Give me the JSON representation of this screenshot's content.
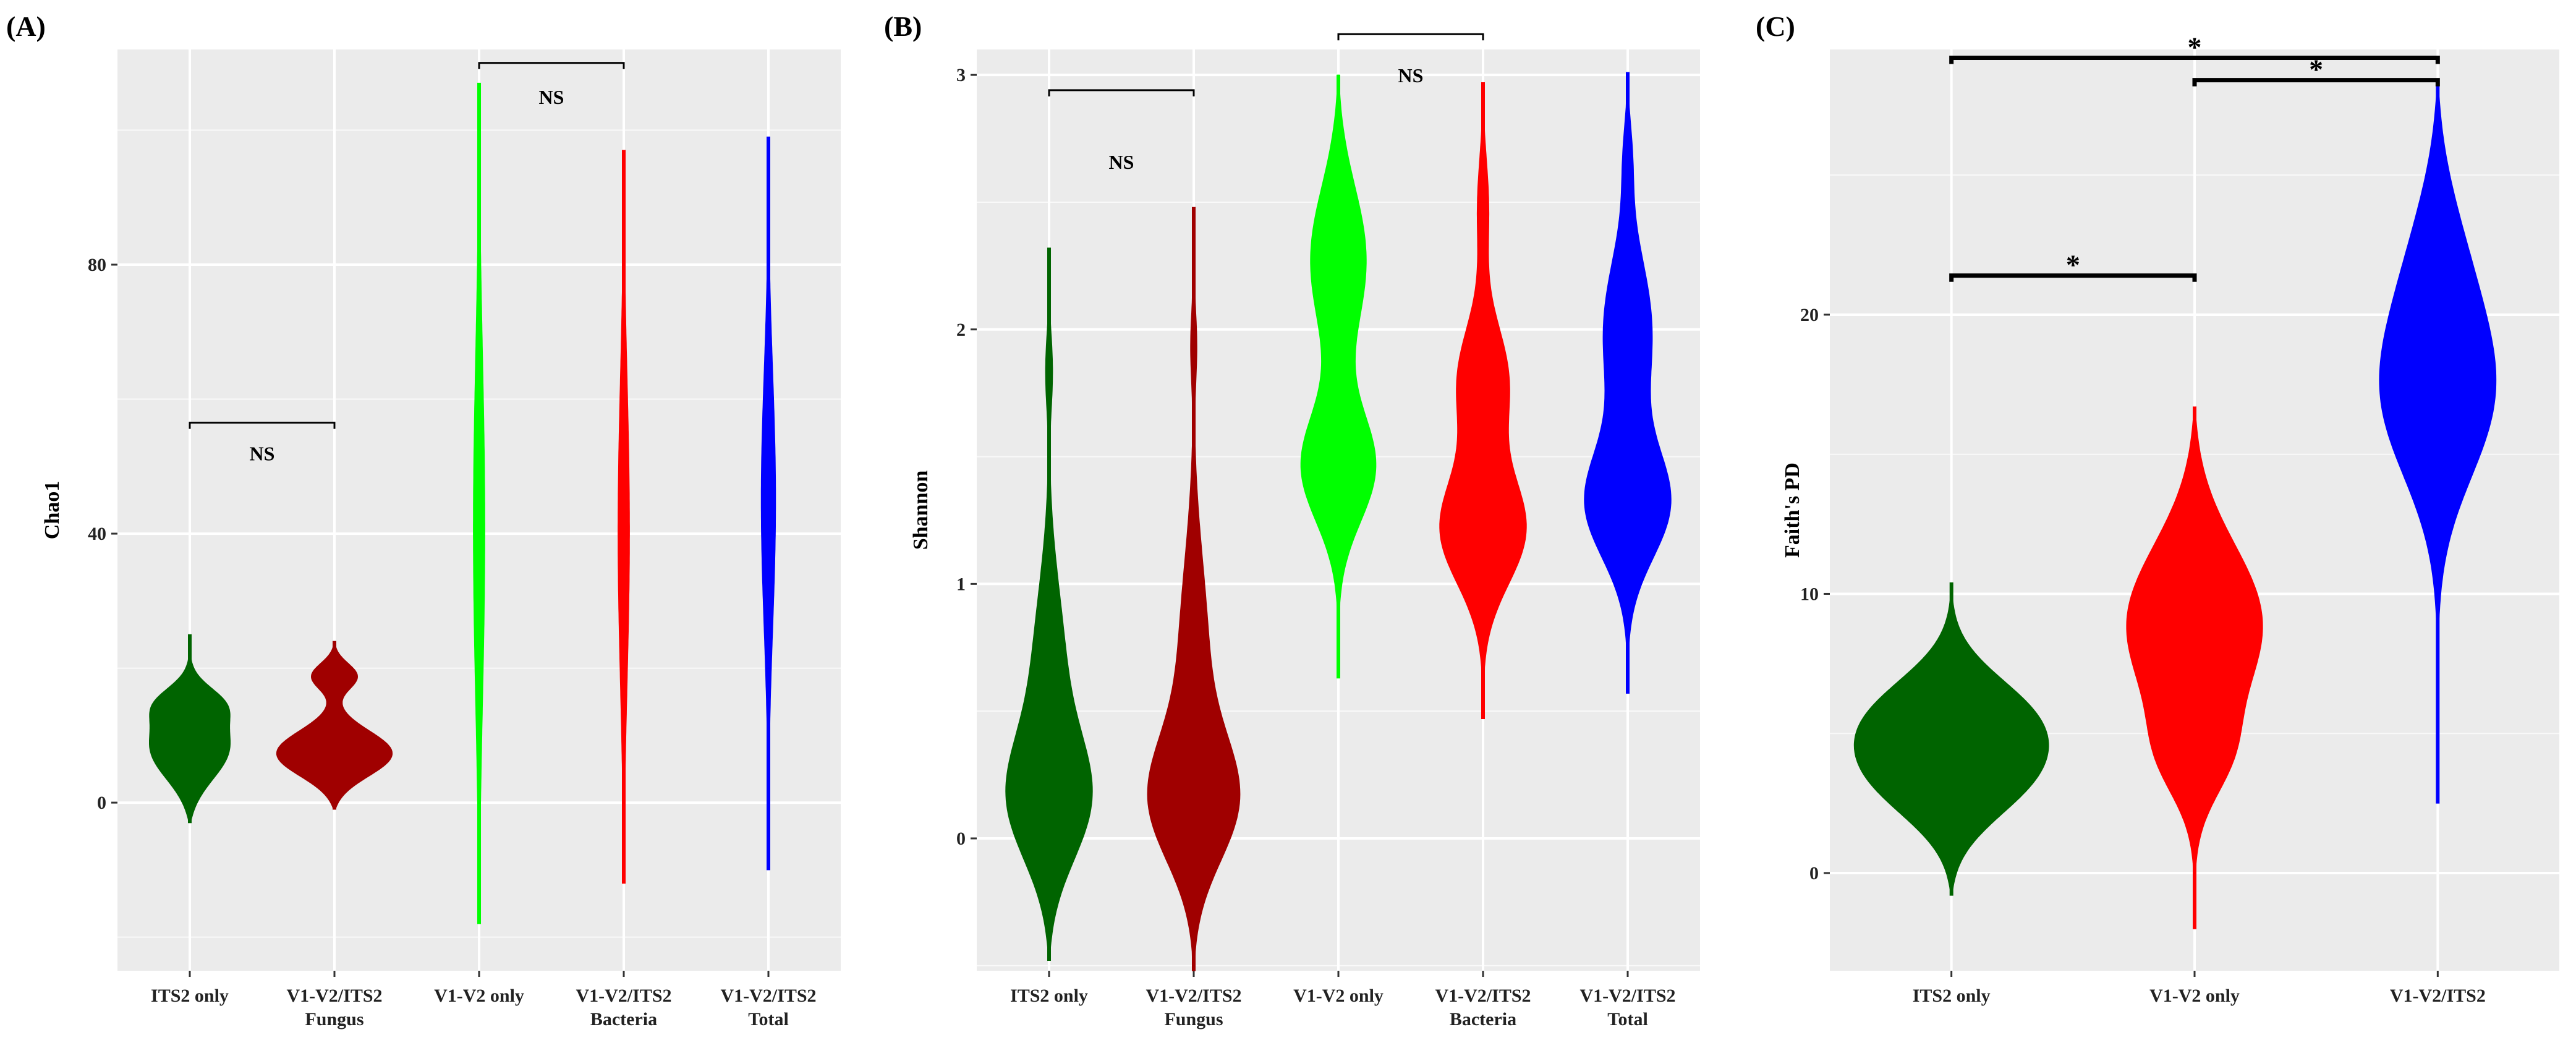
{
  "chart_data": [
    {
      "type": "violin",
      "panel_label": "(A)",
      "ylabel": "Chao1",
      "ylim": [
        -25,
        112
      ],
      "y_ticks": [
        0,
        40,
        80
      ],
      "y_tick_labels": [
        "0",
        "40",
        "80"
      ],
      "categories": [
        "ITS2 only",
        "V1-V2/ITS2",
        "V1-V2 only",
        "V1-V2/ITS2",
        "V1-V2/ITS2"
      ],
      "category_sublabels": [
        "",
        "Fungus",
        "",
        "Bacteria",
        "Total"
      ],
      "colors": [
        "#006400",
        "#a00000",
        "#00ff00",
        "#ff0000",
        "#0000ff"
      ],
      "series": [
        {
          "name": "ITS2 only",
          "range": [
            -3,
            25
          ],
          "modes": [
            [
              8,
              5,
              1.0
            ],
            [
              15,
              2.5,
              0.55
            ]
          ],
          "max_halfwidth": 0.28
        },
        {
          "name": "V1-V2/ITS2 Fungus",
          "range": [
            -1,
            24
          ],
          "modes": [
            [
              7,
              3.5,
              1.0
            ],
            [
              19,
              2,
              0.45
            ]
          ],
          "max_halfwidth": 0.4
        },
        {
          "name": "V1-V2 only",
          "range": [
            -18,
            107
          ],
          "modes": [
            [
              40,
              28,
              1.0
            ]
          ],
          "max_halfwidth": 0.04
        },
        {
          "name": "V1-V2/ITS2 Bacteria",
          "range": [
            -12,
            97
          ],
          "modes": [
            [
              40,
              24,
              1.0
            ]
          ],
          "max_halfwidth": 0.04
        },
        {
          "name": "V1-V2/ITS2 Total",
          "range": [
            -10,
            99
          ],
          "modes": [
            [
              45,
              20,
              1.0
            ]
          ],
          "max_halfwidth": 0.05
        }
      ],
      "annotations": [
        {
          "from": 0,
          "to": 1,
          "y": 56.5,
          "text": "NS",
          "text_y": 52
        },
        {
          "from": 2,
          "to": 3,
          "y": 110,
          "text": "NS",
          "text_y": 105
        }
      ]
    },
    {
      "type": "violin",
      "panel_label": "(B)",
      "ylabel": "Shannon",
      "ylim": [
        -0.52,
        3.1
      ],
      "y_ticks": [
        0,
        1,
        2,
        3
      ],
      "y_tick_labels": [
        "0",
        "1",
        "2",
        "3"
      ],
      "categories": [
        "ITS2 only",
        "V1-V2/ITS2",
        "V1-V2 only",
        "V1-V2/ITS2",
        "V1-V2/ITS2"
      ],
      "category_sublabels": [
        "",
        "Fungus",
        "",
        "Bacteria",
        "Total"
      ],
      "colors": [
        "#006400",
        "#a00000",
        "#00ff00",
        "#ff0000",
        "#0000ff"
      ],
      "series": [
        {
          "name": "ITS2 only",
          "range": [
            -0.48,
            2.32
          ],
          "modes": [
            [
              0.12,
              0.25,
              1.0
            ],
            [
              0.65,
              0.35,
              0.35
            ],
            [
              1.85,
              0.15,
              0.1
            ]
          ],
          "max_halfwidth": 0.3
        },
        {
          "name": "V1-V2/ITS2 Fungus",
          "range": [
            -0.52,
            2.48
          ],
          "modes": [
            [
              0.12,
              0.25,
              1.0
            ],
            [
              0.7,
              0.4,
              0.3
            ],
            [
              1.95,
              0.15,
              0.08
            ]
          ],
          "max_halfwidth": 0.32
        },
        {
          "name": "V1-V2 only",
          "range": [
            0.63,
            3.0
          ],
          "modes": [
            [
              1.45,
              0.22,
              0.9
            ],
            [
              2.3,
              0.3,
              0.7
            ]
          ],
          "max_halfwidth": 0.26
        },
        {
          "name": "V1-V2/ITS2 Bacteria",
          "range": [
            0.47,
            2.97
          ],
          "modes": [
            [
              1.2,
              0.22,
              1.0
            ],
            [
              1.8,
              0.22,
              0.55
            ],
            [
              2.5,
              0.2,
              0.15
            ]
          ],
          "max_halfwidth": 0.3
        },
        {
          "name": "V1-V2/ITS2 Total",
          "range": [
            0.57,
            3.01
          ],
          "modes": [
            [
              1.3,
              0.22,
              1.0
            ],
            [
              2.0,
              0.3,
              0.55
            ],
            [
              2.7,
              0.15,
              0.12
            ]
          ],
          "max_halfwidth": 0.3
        }
      ],
      "annotations": [
        {
          "from": 0,
          "to": 1,
          "y": 2.94,
          "text": "NS",
          "text_y": 2.66
        },
        {
          "from": 2,
          "to": 3,
          "y": 3.16,
          "text": "NS",
          "text_y": 3.0
        }
      ]
    },
    {
      "type": "violin",
      "panel_label": "(C)",
      "ylabel": "Faith's PD",
      "ylim": [
        -3.5,
        29.5
      ],
      "y_ticks": [
        0,
        10,
        20
      ],
      "y_tick_labels": [
        "0",
        "10",
        "20"
      ],
      "categories": [
        "ITS2 only",
        "V1-V2 only",
        "V1-V2/ITS2"
      ],
      "category_sublabels": [
        "",
        "",
        ""
      ],
      "colors": [
        "#006400",
        "#ff0000",
        "#0000ff"
      ],
      "series": [
        {
          "name": "ITS2 only",
          "range": [
            -0.8,
            10.4
          ],
          "modes": [
            [
              3.2,
              1.6,
              0.95
            ],
            [
              5.7,
              1.6,
              1.0
            ]
          ],
          "max_halfwidth": 0.4
        },
        {
          "name": "V1-V2 only",
          "range": [
            -2,
            16.7
          ],
          "modes": [
            [
              9,
              3,
              1.0
            ],
            [
              4,
              1.5,
              0.35
            ]
          ],
          "max_halfwidth": 0.28
        },
        {
          "name": "V1-V2/ITS2",
          "range": [
            2.5,
            28.3
          ],
          "modes": [
            [
              17,
              3,
              1.0
            ],
            [
              22,
              3,
              0.5
            ]
          ],
          "max_halfwidth": 0.24
        }
      ],
      "annotations": [
        {
          "from": 0,
          "to": 1,
          "y": 21.4,
          "text": "*",
          "text_y": 21.8
        },
        {
          "from": 0,
          "to": 2,
          "y": 29.2,
          "text": "*",
          "text_y": 29.5
        },
        {
          "from": 1,
          "to": 2,
          "y": 28.4,
          "text": "*",
          "text_y": 28.6
        }
      ]
    }
  ]
}
